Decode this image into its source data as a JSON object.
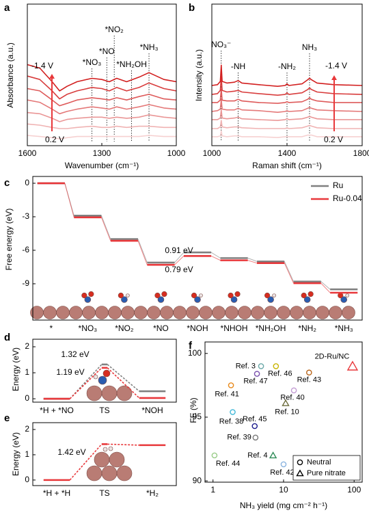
{
  "chart_data": [
    {
      "type": "line",
      "panel": "a",
      "x_label": "Wavenumber (cm⁻¹)",
      "y_label": "Absorbance (a.u.)",
      "xlim": [
        1600,
        1000
      ],
      "xticks": [
        1600,
        1300,
        1000
      ],
      "ylim": [
        0.4,
        12.8
      ],
      "x": [
        1600,
        1550,
        1500,
        1470,
        1440,
        1400,
        1340,
        1300,
        1270,
        1240,
        1200,
        1150,
        1110,
        1050,
        1000
      ],
      "series": [
        {
          "color": "#f6d0d0",
          "values": [
            1.3,
            1.2,
            1.1,
            1.0,
            1.1,
            1.2,
            1.2,
            1.2,
            1.2,
            1.2,
            1.2,
            1.2,
            1.3,
            1.2,
            1.2
          ]
        },
        {
          "color": "#f0b3b3",
          "values": [
            2.3,
            2.2,
            2.0,
            1.9,
            1.9,
            2.0,
            2.1,
            2.0,
            2.0,
            2.1,
            2.0,
            2.1,
            2.1,
            2.0,
            2.0
          ]
        },
        {
          "color": "#ea9696",
          "values": [
            3.3,
            3.2,
            2.8,
            2.5,
            2.7,
            2.8,
            2.9,
            2.9,
            2.8,
            2.9,
            2.8,
            2.9,
            3.1,
            2.9,
            2.8
          ]
        },
        {
          "color": "#e47878",
          "values": [
            4.4,
            4.2,
            3.6,
            3.2,
            3.4,
            3.6,
            3.8,
            3.7,
            3.6,
            3.8,
            3.6,
            3.8,
            4.0,
            3.7,
            3.6
          ]
        },
        {
          "color": "#de5a5a",
          "values": [
            5.4,
            5.2,
            4.4,
            3.9,
            4.1,
            4.4,
            4.6,
            4.5,
            4.4,
            4.6,
            4.4,
            4.7,
            4.9,
            4.5,
            4.4
          ]
        },
        {
          "color": "#d83c3c",
          "values": [
            6.5,
            6.2,
            5.2,
            4.5,
            4.9,
            5.2,
            5.5,
            5.4,
            5.2,
            5.5,
            5.2,
            5.5,
            5.9,
            5.4,
            5.2
          ]
        },
        {
          "color": "#d21e1e",
          "values": [
            7.5,
            7.2,
            6.0,
            5.2,
            5.6,
            6.0,
            6.3,
            6.2,
            6.0,
            6.3,
            6.0,
            6.4,
            6.8,
            6.2,
            6.0
          ]
        }
      ],
      "peaks": [
        {
          "label": "*NO₃",
          "x": 1340
        },
        {
          "label": "*NO",
          "x": 1280
        },
        {
          "label": "*NO₂",
          "x": 1250
        },
        {
          "label": "*NH₂OH",
          "x": 1180
        },
        {
          "label": "*NH₃",
          "x": 1110
        }
      ],
      "annotations": [
        "-1.4 V",
        "0.2 V"
      ]
    },
    {
      "type": "line",
      "panel": "b",
      "x_label": "Raman shift (cm⁻¹)",
      "y_label": "Intensity (a.u.)",
      "xlim": [
        1000,
        1800
      ],
      "xticks": [
        1000,
        1400,
        1800
      ],
      "ylim": [
        0.1,
        17.5
      ],
      "x": [
        1000,
        1030,
        1045,
        1050,
        1055,
        1080,
        1120,
        1140,
        1160,
        1250,
        1350,
        1390,
        1400,
        1410,
        1480,
        1510,
        1520,
        1530,
        1560,
        1650,
        1800
      ],
      "series": [
        {
          "color": "#f6d0d0",
          "values": [
            1.2,
            1.2,
            1.3,
            1.9,
            1.3,
            1.2,
            1.3,
            1.3,
            1.2,
            1.2,
            1.1,
            1.2,
            1.2,
            1.2,
            1.2,
            1.4,
            1.4,
            1.4,
            1.2,
            1.2,
            1.2
          ]
        },
        {
          "color": "#f0b3b3",
          "values": [
            2.2,
            2.2,
            2.4,
            3.2,
            2.4,
            2.3,
            2.4,
            2.4,
            2.3,
            2.2,
            2.2,
            2.2,
            2.3,
            2.2,
            2.3,
            2.5,
            2.6,
            2.5,
            2.3,
            2.2,
            2.2
          ]
        },
        {
          "color": "#ea9696",
          "values": [
            3.3,
            3.3,
            3.5,
            4.5,
            3.5,
            3.4,
            3.5,
            3.6,
            3.4,
            3.3,
            3.2,
            3.3,
            3.4,
            3.3,
            3.4,
            3.6,
            3.7,
            3.6,
            3.4,
            3.3,
            3.3
          ]
        },
        {
          "color": "#e47878",
          "values": [
            4.3,
            4.4,
            4.6,
            5.8,
            4.6,
            4.5,
            4.5,
            4.7,
            4.5,
            4.4,
            4.2,
            4.3,
            4.4,
            4.3,
            4.4,
            4.7,
            4.8,
            4.7,
            4.5,
            4.4,
            4.3
          ]
        },
        {
          "color": "#de5a5a",
          "values": [
            5.4,
            5.4,
            5.7,
            7.1,
            5.7,
            5.6,
            5.6,
            5.8,
            5.6,
            5.4,
            5.3,
            5.4,
            5.5,
            5.4,
            5.5,
            5.8,
            6.0,
            5.8,
            5.6,
            5.4,
            5.4
          ]
        },
        {
          "color": "#d83c3c",
          "values": [
            6.4,
            6.5,
            6.9,
            8.6,
            6.9,
            6.7,
            6.8,
            6.9,
            6.7,
            6.5,
            6.3,
            6.4,
            6.6,
            6.4,
            6.6,
            7.0,
            7.2,
            7.0,
            6.7,
            6.5,
            6.4
          ]
        },
        {
          "color": "#d21e1e",
          "values": [
            7.5,
            7.6,
            8.0,
            10.0,
            8.0,
            7.8,
            7.9,
            8.1,
            7.8,
            7.6,
            7.4,
            7.5,
            7.7,
            7.5,
            7.7,
            8.2,
            8.4,
            8.2,
            7.8,
            7.6,
            7.5
          ]
        }
      ],
      "peaks": [
        {
          "label": "NO₃⁻",
          "x": 1050
        },
        {
          "label": "-NH",
          "x": 1140
        },
        {
          "label": "-NH₂",
          "x": 1400
        },
        {
          "label": "NH₃",
          "x": 1520
        }
      ],
      "annotations": [
        "-1.4 V",
        "0.2 V"
      ]
    },
    {
      "type": "step",
      "panel": "c",
      "y_label": "Free energy (eV)",
      "ylim": [
        -12.25,
        0.61
      ],
      "yticks": [
        0,
        -3,
        -6,
        -9
      ],
      "categories": [
        "*",
        "*NO₃",
        "*NO₂",
        "*NO",
        "*NOH",
        "*NHOH",
        "*NH₂OH",
        "*NH₂",
        "*NH₃"
      ],
      "connector": "solid",
      "legend_corner": "upper right",
      "series": [
        {
          "name": "Ru",
          "color": "#808080",
          "values": [
            0,
            -2.9,
            -5.0,
            -7.1,
            -6.19,
            -6.7,
            -7.0,
            -8.8,
            -9.5
          ]
        },
        {
          "name": "Ru-0.04",
          "color": "#e8373a",
          "values": [
            0,
            -3.05,
            -5.15,
            -7.3,
            -6.51,
            -6.9,
            -7.15,
            -8.95,
            -9.8
          ]
        }
      ],
      "annotations": [
        {
          "text": "0.91 eV",
          "color": "#808080"
        },
        {
          "text": "0.79 eV",
          "color": "#e8373a"
        }
      ]
    },
    {
      "type": "step",
      "panel": "d",
      "y_label": "Energy (eV)",
      "ylim": [
        -0.13,
        2.29
      ],
      "yticks": [
        0,
        1,
        2
      ],
      "categories": [
        "*H + *NO",
        "TS",
        "*NOH"
      ],
      "connector": "dashed",
      "series": [
        {
          "color": "#808080",
          "values": [
            0,
            1.32,
            0.29
          ]
        },
        {
          "color": "#e8373a",
          "values": [
            0,
            1.19,
            0.03
          ]
        }
      ],
      "annotations": [
        {
          "text": "1.32 eV",
          "color": "#808080"
        },
        {
          "text": "1.19 eV",
          "color": "#e8373a"
        }
      ]
    },
    {
      "type": "step",
      "panel": "e",
      "y_label": "Energy (eV)",
      "ylim": [
        -0.22,
        2.27
      ],
      "yticks": [
        0,
        1,
        2
      ],
      "categories": [
        "*H + *H",
        "TS",
        "*H₂"
      ],
      "connector": "dashed",
      "series": [
        {
          "color": "#e8373a",
          "values": [
            0,
            1.42,
            1.38
          ]
        }
      ],
      "annotations": [
        {
          "text": "1.42 eV",
          "color": "#e8373a"
        }
      ]
    },
    {
      "type": "scatter",
      "panel": "f",
      "x_label": "NH₃ yield (mg cm⁻² h⁻¹)",
      "y_label": "FE (%)",
      "xscale": "log",
      "xlim": [
        0.77,
        130
      ],
      "xticks": [
        1,
        10,
        100
      ],
      "ylim": [
        89.9,
        100.9
      ],
      "yticks": [
        90,
        95,
        100
      ],
      "point_labels": [
        "Ref. 3",
        "Ref. 46",
        "Ref. 47",
        "Ref. 43",
        "Ref. 41",
        "Ref. 40",
        "Ref. 10",
        "Ref. 38",
        "Ref. 45",
        "Ref. 39",
        "Ref. 4",
        "Ref. 44",
        "Ref. 42",
        "2D-Ru/NC"
      ],
      "x": [
        4.8,
        7.8,
        4.2,
        23,
        1.8,
        14,
        10.7,
        1.9,
        3.9,
        4.0,
        7.1,
        1.05,
        10,
        95
      ],
      "values": [
        99.0,
        99.0,
        98.4,
        98.5,
        97.5,
        97.1,
        96.1,
        95.4,
        94.3,
        93.4,
        92.0,
        92.0,
        91.3,
        99.0
      ],
      "colors": [
        "#6aa8a8",
        "#c8b400",
        "#7b52ae",
        "#b8651b",
        "#e8891a",
        "#c39bd3",
        "#6b6b3a",
        "#3fb8d8",
        "#1a1a8c",
        "#777777",
        "#2e8b57",
        "#99cc88",
        "#8ab4e0",
        "#e8373a"
      ],
      "markers": [
        "circle",
        "circle",
        "circle",
        "circle",
        "circle",
        "circle",
        "triangle",
        "circle",
        "circle",
        "circle",
        "triangle",
        "circle",
        "circle",
        "triangle"
      ],
      "legend": [
        {
          "marker": "circle",
          "label": "Neutral"
        },
        {
          "marker": "triangle",
          "label": "Pure nitrate"
        }
      ],
      "legend_corner": "lower right"
    }
  ]
}
